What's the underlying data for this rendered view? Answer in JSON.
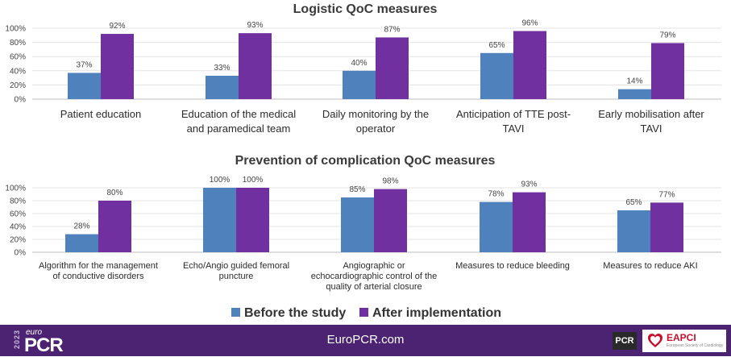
{
  "chart_data": [
    {
      "type": "bar",
      "title": "Logistic QoC measures",
      "categories": [
        [
          "Patient education"
        ],
        [
          "Education of the medical",
          "and paramedical team"
        ],
        [
          "Daily monitoring by the",
          "operator"
        ],
        [
          "Anticipation of TTE post-",
          "TAVI"
        ],
        [
          "Early mobilisation after",
          "TAVI"
        ]
      ],
      "series": [
        {
          "name": "Before the study",
          "values": [
            37,
            33,
            40,
            65,
            14
          ],
          "labels": [
            "37%",
            "33%",
            "40%",
            "65%",
            "14%"
          ]
        },
        {
          "name": "After implementation",
          "values": [
            92,
            93,
            87,
            96,
            79
          ],
          "labels": [
            "92%",
            "93%",
            "87%",
            "96%",
            "79%"
          ]
        }
      ],
      "yticks": [
        "0%",
        "20%",
        "40%",
        "60%",
        "80%",
        "100%"
      ],
      "ylim": [
        0,
        100
      ],
      "grid": true
    },
    {
      "type": "bar",
      "title": "Prevention of complication QoC measures",
      "categories": [
        [
          "Algorithm for the management",
          "of conductive disorders"
        ],
        [
          "Echo/Angio guided femoral",
          "puncture"
        ],
        [
          "Angiographic or",
          "echocardiographic control of the",
          "quality of arterial closure"
        ],
        [
          "Measures to reduce bleeding"
        ],
        [
          "Measures to reduce AKI"
        ]
      ],
      "series": [
        {
          "name": "Before the study",
          "values": [
            28,
            100,
            85,
            78,
            65
          ],
          "labels": [
            "28%",
            "100%",
            "85%",
            "78%",
            "65%"
          ]
        },
        {
          "name": "After implementation",
          "values": [
            80,
            100,
            98,
            93,
            77
          ],
          "labels": [
            "80%",
            "100%",
            "98%",
            "93%",
            "77%"
          ]
        }
      ],
      "yticks": [
        "0%",
        "20%",
        "40%",
        "60%",
        "80%",
        "100%"
      ],
      "ylim": [
        0,
        100
      ],
      "grid": true
    }
  ],
  "legend": {
    "position": "bottom",
    "items": [
      {
        "label": "Before the study",
        "color": "#4f81bd"
      },
      {
        "label": "After implementation",
        "color": "#7030a0"
      }
    ]
  },
  "colors": {
    "before": "#4f81bd",
    "after": "#7030a0",
    "footer_bg": "#4b2372"
  },
  "footer": {
    "year": "2023",
    "euro": "euro",
    "pcr": "PCR",
    "website": "EuroPCR.com",
    "badge": "PCR",
    "eapci": "EAPCI",
    "eapci_sub": "European Society of Cardiology"
  }
}
